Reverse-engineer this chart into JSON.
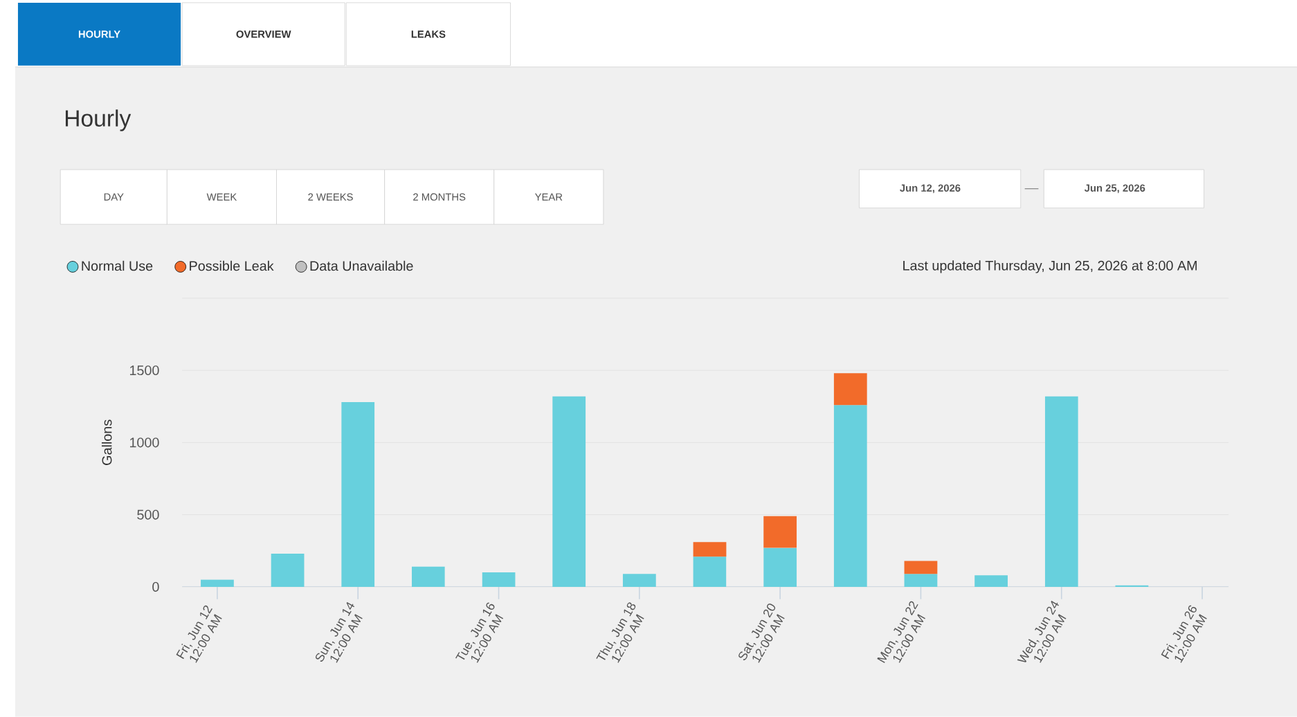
{
  "chart_data": {
    "type": "bar",
    "title": "Hourly",
    "ylabel": "Gallons",
    "stacked": true,
    "grid": "y",
    "legend": "top left",
    "x": [
      "2026-06-12",
      "2026-06-13",
      "2026-06-14",
      "2026-06-15",
      "2026-06-16",
      "2026-06-17",
      "2026-06-18",
      "2026-06-19",
      "2026-06-20",
      "2026-06-21",
      "2026-06-22",
      "2026-06-23",
      "2026-06-24",
      "2026-06-25"
    ],
    "series": [
      {
        "name": "Normal Use",
        "color": "#67d0dd",
        "values": [
          50,
          230,
          1280,
          140,
          100,
          1320,
          90,
          210,
          270,
          1260,
          90,
          80,
          1320,
          10
        ]
      },
      {
        "name": "Possible Leak",
        "color": "#f26b2a",
        "values": [
          null,
          null,
          null,
          null,
          null,
          null,
          null,
          100,
          220,
          220,
          90,
          null,
          null,
          null
        ]
      },
      {
        "name": "Data Unavailable",
        "color": "#c0c0c0",
        "values": [
          null,
          null,
          null,
          null,
          null,
          null,
          null,
          null,
          null,
          null,
          null,
          null,
          null,
          null
        ]
      }
    ],
    "xlim": [
      "2026-06-11T12:00",
      "2026-06-26T09:00"
    ],
    "xticks": [
      {
        "value": "2026-06-12",
        "label": "Fri, Jun 12 12:00 AM"
      },
      {
        "value": "2026-06-14",
        "label": "Sun, Jun 14 12:00 AM"
      },
      {
        "value": "2026-06-16",
        "label": "Tue, Jun 16 12:00 AM"
      },
      {
        "value": "2026-06-18",
        "label": "Thu, Jun 18 12:00 AM"
      },
      {
        "value": "2026-06-20",
        "label": "Sat, Jun 20 12:00 AM"
      },
      {
        "value": "2026-06-22",
        "label": "Mon, Jun 22 12:00 AM"
      },
      {
        "value": "2026-06-24",
        "label": "Wed, Jun 24 12:00 AM"
      },
      {
        "value": "2026-06-26",
        "label": "Fri, Jun 26 12:00 AM"
      }
    ],
    "ylim": [
      0,
      2000
    ],
    "yticks": [
      0,
      500,
      1000,
      1500,
      {
        "value": 2000,
        "label": null
      }
    ],
    "annotations": [
      "HOURLY",
      "OVERVIEW",
      "LEAKS",
      "DAY",
      "WEEK",
      "2 WEEKS",
      "2 MONTHS",
      "YEAR",
      "Jun 12, 2026",
      "Jun 25, 2026",
      "Last updated Thursday, Jun 25, 2026 at 8:00 AM"
    ]
  }
}
